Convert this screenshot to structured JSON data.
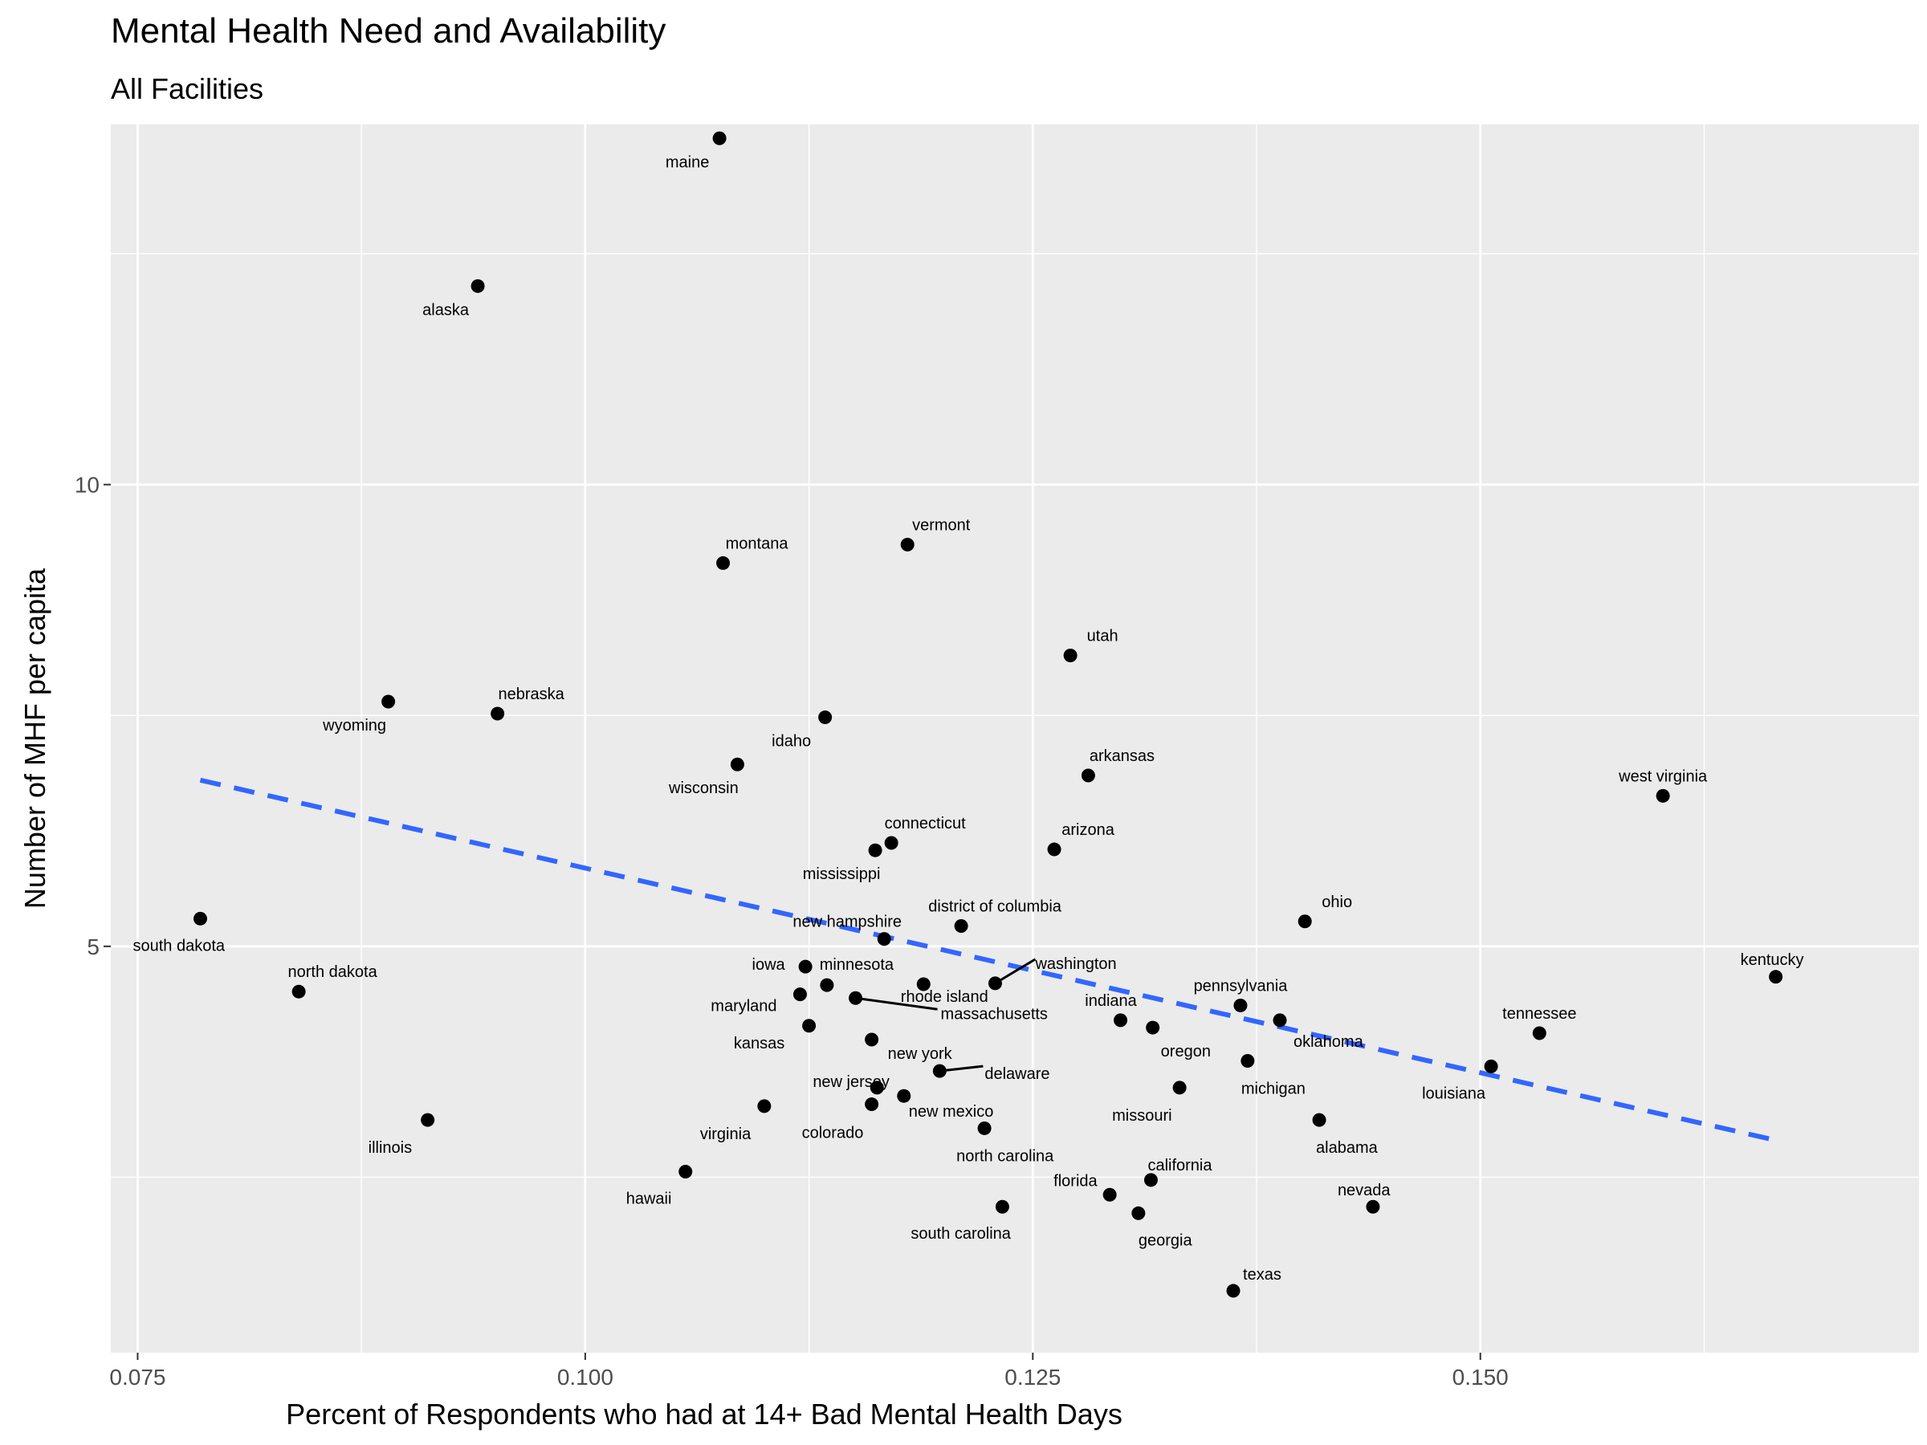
{
  "chart_data": {
    "type": "scatter",
    "title": "Mental Health Need and Availability",
    "subtitle": "All Facilities",
    "xlabel": "Percent of Respondents who had at 14+ Bad Mental Health Days",
    "ylabel": "Number of MHF per capita",
    "xlim": [
      0.0735,
      0.1745
    ],
    "ylim": [
      0.6,
      13.9
    ],
    "x_ticks": [
      0.075,
      0.1,
      0.125,
      0.15
    ],
    "x_tick_labels": [
      "0.075",
      "0.100",
      "0.125",
      "0.150"
    ],
    "y_ticks": [
      5,
      10
    ],
    "y_tick_labels": [
      "5",
      "10"
    ],
    "grid": true,
    "trend_line": {
      "style": "dashed",
      "color": "#3366ff",
      "x": [
        0.0785,
        0.1665
      ],
      "y": [
        6.8,
        2.9
      ]
    },
    "points": [
      {
        "name": "maine",
        "x": 0.1075,
        "y": 13.75
      },
      {
        "name": "alaska",
        "x": 0.094,
        "y": 12.15
      },
      {
        "name": "vermont",
        "x": 0.118,
        "y": 9.35
      },
      {
        "name": "montana",
        "x": 0.1077,
        "y": 9.15
      },
      {
        "name": "utah",
        "x": 0.1271,
        "y": 8.15
      },
      {
        "name": "wyoming",
        "x": 0.089,
        "y": 7.65
      },
      {
        "name": "nebraska",
        "x": 0.0951,
        "y": 7.52
      },
      {
        "name": "idaho",
        "x": 0.1134,
        "y": 7.48
      },
      {
        "name": "wisconsin",
        "x": 0.1085,
        "y": 6.97
      },
      {
        "name": "arkansas",
        "x": 0.1281,
        "y": 6.85
      },
      {
        "name": "west virginia",
        "x": 0.1602,
        "y": 6.63
      },
      {
        "name": "connecticut",
        "x": 0.1171,
        "y": 6.12
      },
      {
        "name": "mississippi",
        "x": 0.1162,
        "y": 6.04
      },
      {
        "name": "arizona",
        "x": 0.1262,
        "y": 6.05
      },
      {
        "name": "south dakota",
        "x": 0.0785,
        "y": 5.3
      },
      {
        "name": "ohio",
        "x": 0.1402,
        "y": 5.27
      },
      {
        "name": "district of columbia",
        "x": 0.121,
        "y": 5.22
      },
      {
        "name": "new hampshire",
        "x": 0.1167,
        "y": 5.08
      },
      {
        "name": "kentucky",
        "x": 0.1665,
        "y": 4.67
      },
      {
        "name": "iowa",
        "x": 0.1123,
        "y": 4.78
      },
      {
        "name": "minnesota",
        "x": 0.1135,
        "y": 4.58
      },
      {
        "name": "rhode island",
        "x": 0.1189,
        "y": 4.59
      },
      {
        "name": "washington",
        "x": 0.1229,
        "y": 4.6
      },
      {
        "name": "north dakota",
        "x": 0.084,
        "y": 4.51
      },
      {
        "name": "maryland",
        "x": 0.112,
        "y": 4.48
      },
      {
        "name": "massachusetts",
        "x": 0.1151,
        "y": 4.44
      },
      {
        "name": "pennsylvania",
        "x": 0.1366,
        "y": 4.36
      },
      {
        "name": "indiana",
        "x": 0.1299,
        "y": 4.2
      },
      {
        "name": "oklahoma",
        "x": 0.1388,
        "y": 4.2
      },
      {
        "name": "oregon",
        "x": 0.1317,
        "y": 4.12
      },
      {
        "name": "kansas",
        "x": 0.1125,
        "y": 4.14
      },
      {
        "name": "tennessee",
        "x": 0.1533,
        "y": 4.06
      },
      {
        "name": "new york",
        "x": 0.116,
        "y": 3.99
      },
      {
        "name": "michigan",
        "x": 0.137,
        "y": 3.76
      },
      {
        "name": "delaware",
        "x": 0.1198,
        "y": 3.65
      },
      {
        "name": "louisiana",
        "x": 0.1506,
        "y": 3.7
      },
      {
        "name": "new jersey",
        "x": 0.1163,
        "y": 3.47
      },
      {
        "name": "new mexico",
        "x": 0.1178,
        "y": 3.38
      },
      {
        "name": "missouri",
        "x": 0.1332,
        "y": 3.47
      },
      {
        "name": "colorado",
        "x": 0.116,
        "y": 3.29
      },
      {
        "name": "virginia",
        "x": 0.11,
        "y": 3.27
      },
      {
        "name": "alabama",
        "x": 0.141,
        "y": 3.12
      },
      {
        "name": "illinois",
        "x": 0.0912,
        "y": 3.12
      },
      {
        "name": "north carolina",
        "x": 0.1223,
        "y": 3.03
      },
      {
        "name": "hawaii",
        "x": 0.1056,
        "y": 2.56
      },
      {
        "name": "california",
        "x": 0.1316,
        "y": 2.47
      },
      {
        "name": "florida",
        "x": 0.1293,
        "y": 2.31
      },
      {
        "name": "south carolina",
        "x": 0.1233,
        "y": 2.18
      },
      {
        "name": "nevada",
        "x": 0.144,
        "y": 2.18
      },
      {
        "name": "georgia",
        "x": 0.1309,
        "y": 2.11
      },
      {
        "name": "texas",
        "x": 0.1362,
        "y": 1.27
      }
    ]
  }
}
